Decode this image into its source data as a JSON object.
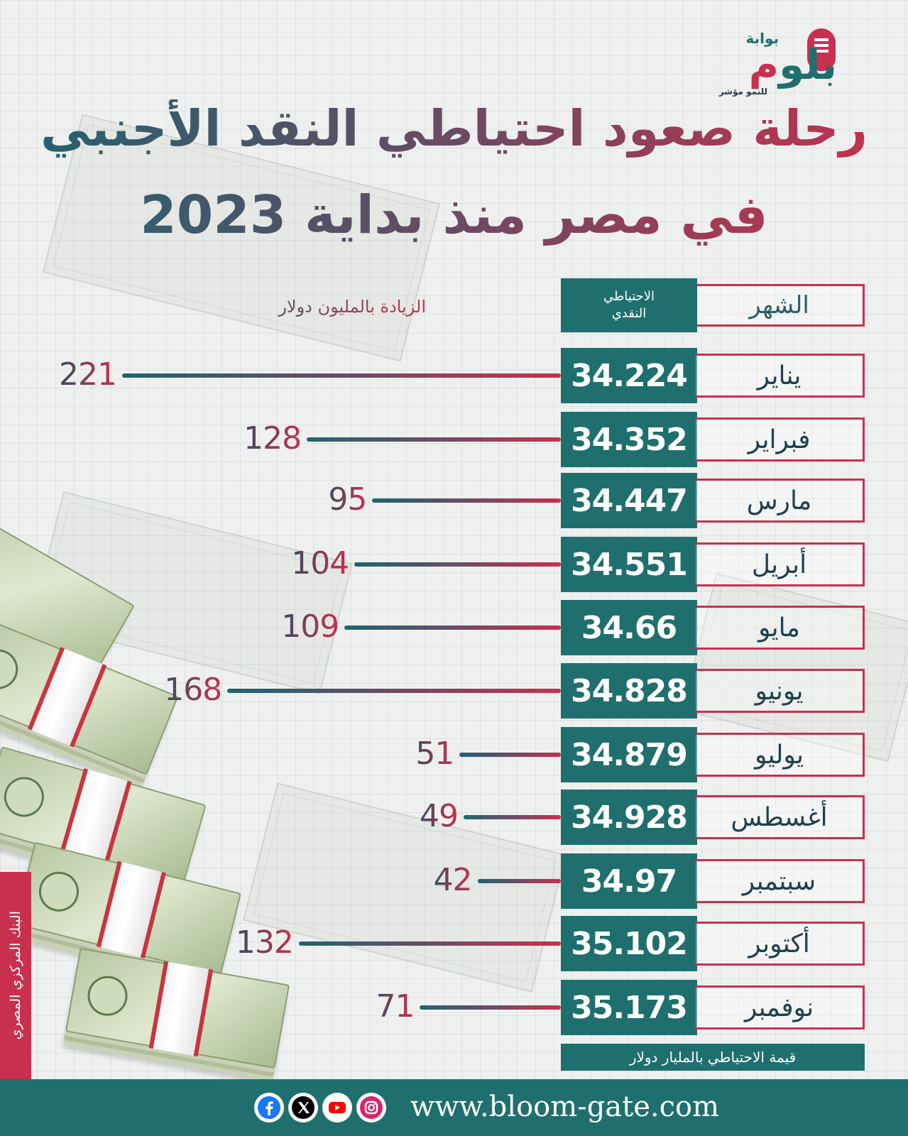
{
  "logo": {
    "top_word": "بوابة",
    "main_word_a": "بلو",
    "main_word_b": "م",
    "sub_word": "للنمو مؤشر"
  },
  "title": {
    "line1": "رحلة صعود احتياطي النقد الأجنبي",
    "line2": "في مصر منذ بداية 2023"
  },
  "headers": {
    "month": "الشهر",
    "reserve_line1": "الاحتياطي",
    "reserve_line2": "النقدي",
    "increase": "الزيادة بالمليون دولار"
  },
  "footer_note": "قيمة الاحتياطي بالمليار دولار",
  "source": "البنك المركزي المصري",
  "website": "www.bloom-gate.com",
  "social_icons": [
    "facebook-icon",
    "x-icon",
    "youtube-icon",
    "instagram-icon"
  ],
  "colors": {
    "teal": "#1f6f6e",
    "crimson": "#c8304e",
    "dark": "#1f3f4e"
  },
  "chart_data": {
    "type": "bar",
    "title": "رحلة صعود احتياطي النقد الأجنبي في مصر منذ بداية 2023",
    "categories": [
      "يناير",
      "فبراير",
      "مارس",
      "أبريل",
      "مايو",
      "يونيو",
      "يوليو",
      "أغسطس",
      "سبتمبر",
      "أكتوبر",
      "نوفمبر"
    ],
    "series": [
      {
        "name": "الاحتياطي النقدي",
        "values": [
          "34.224",
          "34.352",
          "34.447",
          "34.551",
          "34.66",
          "34.828",
          "34.879",
          "34.928",
          "34.97",
          "35.102",
          "35.173"
        ]
      },
      {
        "name": "الزيادة بالمليون دولار",
        "values": [
          221,
          128,
          95,
          104,
          109,
          168,
          51,
          49,
          42,
          132,
          71
        ]
      }
    ]
  }
}
